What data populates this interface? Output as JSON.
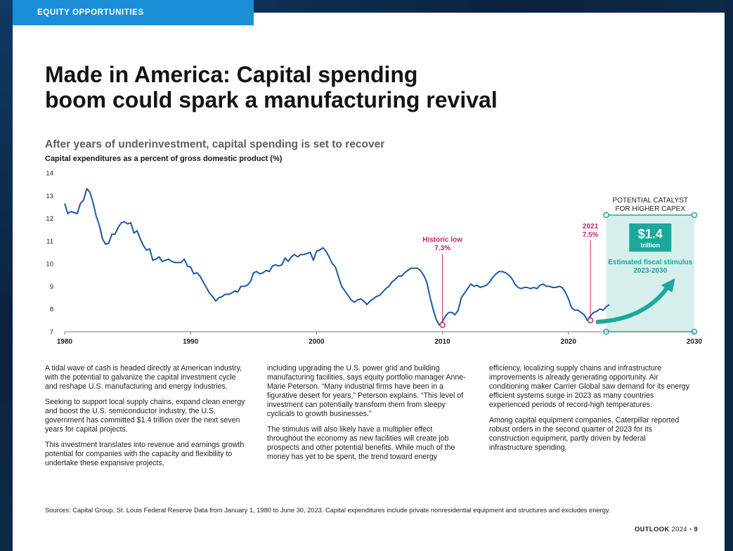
{
  "header": {
    "section_label": "EQUITY OPPORTUNITIES",
    "title_line1": "Made in America: Capital spending",
    "title_line2": "boom could spark a manufacturing revival"
  },
  "chart_heading": {
    "title": "After years of underinvestment, capital spending is set to recover",
    "subtitle": "Capital expenditures as a percent of gross domestic product (%)"
  },
  "chart_data": {
    "type": "line",
    "title": "After years of underinvestment, capital spending is set to recover",
    "ylabel": "Capital expenditures as a percent of gross domestic product (%)",
    "xlabel": "",
    "xlim": [
      1980,
      2030
    ],
    "ylim": [
      7,
      14
    ],
    "x_ticks": [
      "1980",
      "1990",
      "2000",
      "2010",
      "2020",
      "2030"
    ],
    "y_ticks": [
      "14",
      "13",
      "12",
      "11",
      "10",
      "9",
      "8",
      "7"
    ],
    "grid": false,
    "color": "#1a5aa3",
    "series": [
      {
        "x": [
          1980.0,
          1980.25,
          1980.5,
          1980.75,
          1981.0,
          1981.25,
          1981.5,
          1981.75,
          1982.0,
          1982.25,
          1982.5,
          1982.75,
          1983.0,
          1983.25,
          1983.5,
          1983.75,
          1984.0,
          1984.25,
          1984.5,
          1984.75,
          1985.0,
          1985.25,
          1985.5,
          1985.75,
          1986.0,
          1986.25,
          1986.5,
          1986.75,
          1987.0,
          1987.25,
          1987.5,
          1987.75,
          1988.0,
          1988.25,
          1988.5,
          1988.75,
          1989.0,
          1989.25,
          1989.5,
          1989.75,
          1990.0,
          1990.25,
          1990.5,
          1990.75,
          1991.0,
          1991.25,
          1991.5,
          1991.75,
          1992.0,
          1992.25,
          1992.5,
          1992.75,
          1993.0,
          1993.25,
          1993.5,
          1993.75,
          1994.0,
          1994.25,
          1994.5,
          1994.75,
          1995.0,
          1995.25,
          1995.5,
          1995.75,
          1996.0,
          1996.25,
          1996.5,
          1996.75,
          1997.0,
          1997.25,
          1997.5,
          1997.75,
          1998.0,
          1998.25,
          1998.5,
          1998.75,
          1999.0,
          1999.25,
          1999.5,
          1999.75,
          2000.0,
          2000.25,
          2000.5,
          2000.75,
          2001.0,
          2001.25,
          2001.5,
          2001.75,
          2002.0,
          2002.25,
          2002.5,
          2002.75,
          2003.0,
          2003.25,
          2003.5,
          2003.75,
          2004.0,
          2004.25,
          2004.5,
          2004.75,
          2005.0,
          2005.25,
          2005.5,
          2005.75,
          2006.0,
          2006.25,
          2006.5,
          2006.75,
          2007.0,
          2007.25,
          2007.5,
          2007.75,
          2008.0,
          2008.25,
          2008.5,
          2008.75,
          2009.0,
          2009.25,
          2009.5,
          2009.75,
          2010.0,
          2010.25,
          2010.5,
          2010.75,
          2011.0,
          2011.25,
          2011.5,
          2011.75,
          2012.0,
          2012.25,
          2012.5,
          2012.75,
          2013.0,
          2013.25,
          2013.5,
          2013.75,
          2014.0,
          2014.25,
          2014.5,
          2014.75,
          2015.0,
          2015.25,
          2015.5,
          2015.75,
          2016.0,
          2016.25,
          2016.5,
          2016.75,
          2017.0,
          2017.25,
          2017.5,
          2017.75,
          2018.0,
          2018.25,
          2018.5,
          2018.75,
          2019.0,
          2019.25,
          2019.5,
          2019.75,
          2020.0,
          2020.25,
          2020.5,
          2020.75,
          2021.0,
          2021.25,
          2021.5,
          2021.75,
          2022.0,
          2022.25,
          2022.5,
          2022.75,
          2023.0,
          2023.25
        ],
        "values": [
          12.65,
          12.2,
          12.3,
          12.25,
          12.2,
          12.65,
          12.8,
          13.3,
          13.15,
          12.7,
          12.1,
          11.7,
          11.1,
          10.85,
          10.9,
          11.3,
          11.3,
          11.6,
          11.8,
          11.85,
          11.75,
          11.8,
          11.35,
          11.45,
          11.1,
          10.8,
          10.6,
          10.65,
          10.15,
          10.2,
          10.3,
          10.1,
          10.15,
          10.2,
          10.1,
          10.05,
          10.05,
          10.05,
          10.2,
          9.9,
          9.85,
          9.55,
          9.6,
          9.45,
          9.2,
          8.95,
          8.7,
          8.55,
          8.35,
          8.5,
          8.55,
          8.65,
          8.65,
          8.7,
          8.8,
          8.75,
          9.0,
          9.0,
          9.05,
          9.2,
          9.6,
          9.65,
          9.55,
          9.6,
          9.7,
          9.65,
          9.9,
          9.95,
          9.9,
          9.95,
          10.25,
          10.1,
          10.3,
          10.4,
          10.3,
          10.4,
          10.4,
          10.45,
          10.5,
          10.15,
          10.55,
          10.6,
          10.7,
          10.55,
          10.3,
          10.0,
          9.85,
          9.4,
          9.0,
          8.8,
          8.6,
          8.4,
          8.3,
          8.4,
          8.45,
          8.35,
          8.2,
          8.35,
          8.45,
          8.55,
          8.6,
          8.75,
          8.9,
          9.0,
          9.2,
          9.3,
          9.45,
          9.45,
          9.6,
          9.7,
          9.8,
          9.8,
          9.8,
          9.7,
          9.5,
          9.2,
          8.55,
          8.0,
          7.55,
          7.3,
          7.45,
          7.7,
          7.85,
          7.85,
          7.75,
          7.95,
          8.5,
          8.7,
          8.9,
          9.1,
          9.0,
          9.05,
          8.95,
          9.0,
          9.05,
          9.2,
          9.4,
          9.55,
          9.65,
          9.65,
          9.6,
          9.5,
          9.35,
          9.1,
          8.95,
          8.9,
          8.95,
          8.95,
          8.9,
          8.95,
          8.9,
          9.05,
          9.1,
          9.0,
          9.0,
          8.95,
          8.95,
          9.0,
          8.95,
          8.75,
          8.45,
          8.05,
          7.95,
          7.95,
          7.85,
          7.75,
          7.5,
          7.7,
          7.85,
          7.9,
          8.0,
          7.95,
          8.1,
          8.2
        ]
      }
    ],
    "annotations": {
      "historic_low_label": "Historic low",
      "historic_low_value": "7.3%",
      "historic_low_x": 2010,
      "historic_low_y": 7.3,
      "y2021_label": "2021",
      "y2021_value": "7.5%",
      "y2021_x": 2021.75,
      "y2021_y": 7.5,
      "catalyst_line1": "POTENTIAL CATALYST",
      "catalyst_line2": "FOR HIGHER CAPEX",
      "stimulus_amount": "$1.4",
      "stimulus_unit": "trillion",
      "stimulus_line1": "Estimated fiscal stimulus",
      "stimulus_line2": "2023-2030",
      "catalyst_start_x": 2023,
      "catalyst_end_x": 2030
    },
    "colors": {
      "line": "#1a5aa3",
      "accent_magenta": "#c4246c",
      "accent_teal": "#1aa99c",
      "catalyst_fill": "#d6eeec"
    }
  },
  "body": {
    "col1_p1": "A tidal wave of cash is headed directly at American industry, with the potential to galvanize the capital investment cycle and reshape U.S. manufacturing and energy industries.",
    "col1_p2": "Seeking to support local supply chains, expand clean energy and boost the U.S. semiconductor industry, the U.S. government has committed $1.4 trillion over the next seven years for capital projects.",
    "col1_p3": "This investment translates into revenue and earnings growth potential for companies with the capacity and flexibility to undertake these expansive projects,",
    "col2_p1": "including upgrading the U.S. power grid and building manufacturing facilities, says equity portfolio manager Anne-Marie Peterson. “Many industrial firms have been in a figurative desert for years,” Peterson explains. “This level of investment can potentially transform them from sleepy cyclicals to growth businesses.”",
    "col2_p2": "The stimulus will also likely have a multiplier effect throughout the economy as new facilities will create job prospects and other potential benefits. While much of the money has yet to be spent, the trend toward energy",
    "col3_p1": "efficiency, localizing supply chains and infrastructure improvements is already generating opportunity. Air conditioning maker Carrier Global saw demand for its energy efficient systems surge in 2023 as many countries experienced periods of record-high temperatures.",
    "col3_p2": "Among capital equipment companies, Caterpillar reported robust orders in the second quarter of 2023 for its construction equipment, partly driven by federal infrastructure spending."
  },
  "sources": "Sources: Capital Group, St. Louis Federal Reserve Data from January 1, 1980 to June 30, 2023. Capital expenditures include private nonresidential equipment and structures and excludes energy.",
  "footer": {
    "publication": "OUTLOOK",
    "year": "2024",
    "separator": "•",
    "page_number": "9"
  }
}
